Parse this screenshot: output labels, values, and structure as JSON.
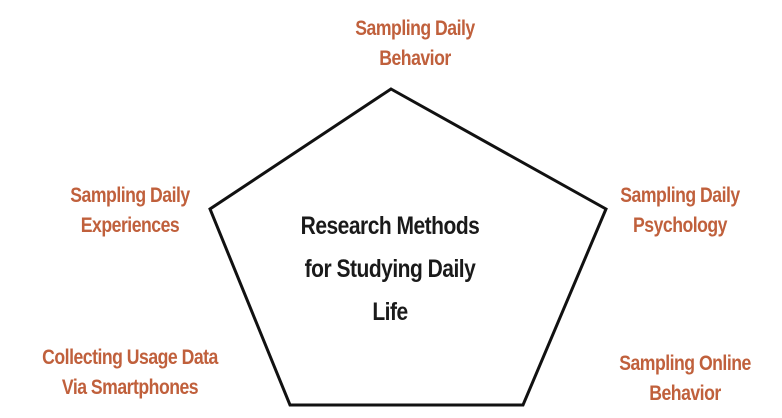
{
  "diagram": {
    "center": {
      "lines": [
        "Research Methods",
        "for Studying Daily",
        "Life"
      ]
    },
    "nodes": {
      "top": {
        "lines": [
          "Sampling Daily",
          "Behavior"
        ]
      },
      "upper_left": {
        "lines": [
          "Sampling Daily",
          "Experiences"
        ]
      },
      "upper_right": {
        "lines": [
          "Sampling Daily",
          "Psychology"
        ]
      },
      "lower_left": {
        "lines": [
          "Collecting Usage Data",
          "Via Smartphones"
        ]
      },
      "lower_right": {
        "lines": [
          "Sampling Online",
          "Behavior"
        ]
      }
    },
    "colors": {
      "label": "#c0603c",
      "center_text": "#1a1a1a",
      "pentagon_stroke": "#111111",
      "pentagon_fill": "#ffffff"
    }
  }
}
